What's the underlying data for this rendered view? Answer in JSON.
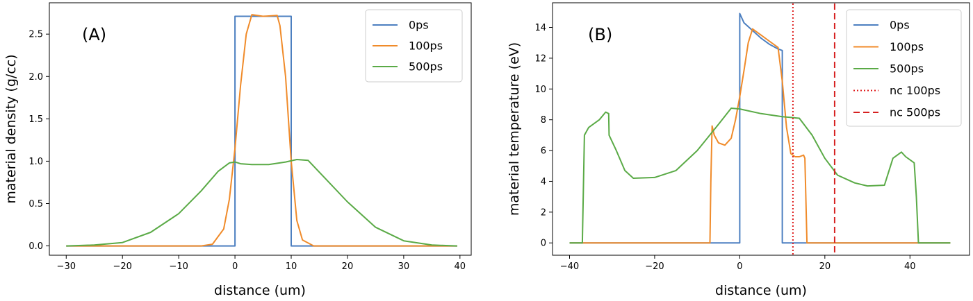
{
  "chart_data": [
    {
      "type": "line",
      "panel_label": "(A)",
      "xlabel": "distance (um)",
      "ylabel": "material density (g/cc)",
      "xlim": [
        -33,
        42
      ],
      "ylim": [
        -0.11,
        2.87
      ],
      "xticks": [
        -30,
        -20,
        -10,
        0,
        10,
        20,
        30,
        40
      ],
      "yticks": [
        0.0,
        0.5,
        1.0,
        1.5,
        2.0,
        2.5
      ],
      "ytick_labels": [
        "0.0",
        "0.5",
        "1.0",
        "1.5",
        "2.0",
        "2.5"
      ],
      "grid": false,
      "legend_position": "top-right",
      "series": [
        {
          "name": "0ps",
          "color": "#4c7fc0",
          "style": "solid",
          "points": [
            [
              -30,
              0
            ],
            [
              0,
              0
            ],
            [
              0,
              2.71
            ],
            [
              10,
              2.71
            ],
            [
              10,
              0
            ],
            [
              39.5,
              0
            ]
          ]
        },
        {
          "name": "100ps",
          "color": "#f08b2a",
          "style": "solid",
          "points": [
            [
              -30,
              0
            ],
            [
              -6,
              0
            ],
            [
              -4,
              0.02
            ],
            [
              -2,
              0.2
            ],
            [
              -1,
              0.55
            ],
            [
              0,
              1.15
            ],
            [
              1,
              1.9
            ],
            [
              2,
              2.5
            ],
            [
              3,
              2.73
            ],
            [
              5,
              2.71
            ],
            [
              7.5,
              2.72
            ],
            [
              8,
              2.6
            ],
            [
              9,
              2.0
            ],
            [
              10,
              1.0
            ],
            [
              11,
              0.3
            ],
            [
              12,
              0.07
            ],
            [
              14,
              0.0
            ],
            [
              39.5,
              0
            ]
          ]
        },
        {
          "name": "500ps",
          "color": "#5aaa46",
          "style": "solid",
          "points": [
            [
              -30,
              0
            ],
            [
              -25,
              0.01
            ],
            [
              -20,
              0.04
            ],
            [
              -15,
              0.16
            ],
            [
              -10,
              0.38
            ],
            [
              -6,
              0.65
            ],
            [
              -3,
              0.88
            ],
            [
              -1,
              0.98
            ],
            [
              0,
              0.99
            ],
            [
              1,
              0.97
            ],
            [
              3,
              0.96
            ],
            [
              6,
              0.96
            ],
            [
              9,
              0.99
            ],
            [
              11,
              1.02
            ],
            [
              13,
              1.01
            ],
            [
              15,
              0.87
            ],
            [
              20,
              0.52
            ],
            [
              25,
              0.22
            ],
            [
              30,
              0.06
            ],
            [
              35,
              0.01
            ],
            [
              39.5,
              0.0
            ]
          ]
        }
      ]
    },
    {
      "type": "line",
      "panel_label": "(B)",
      "xlabel": "distance (um)",
      "ylabel": "material temperature (eV)",
      "xlim": [
        -44,
        54
      ],
      "ylim": [
        -0.8,
        15.6
      ],
      "xticks": [
        -40,
        -20,
        0,
        20,
        40
      ],
      "yticks": [
        0,
        2,
        4,
        6,
        8,
        10,
        12,
        14
      ],
      "ytick_labels": [
        "0",
        "2",
        "4",
        "6",
        "8",
        "10",
        "12",
        "14"
      ],
      "grid": false,
      "legend_position": "top-right",
      "series": [
        {
          "name": "0ps",
          "color": "#4c7fc0",
          "style": "solid",
          "points": [
            [
              -40,
              0
            ],
            [
              0,
              0
            ],
            [
              0,
              14.9
            ],
            [
              1,
              14.3
            ],
            [
              3,
              13.8
            ],
            [
              5,
              13.3
            ],
            [
              7,
              12.9
            ],
            [
              9,
              12.6
            ],
            [
              10,
              12.5
            ],
            [
              10,
              0
            ],
            [
              49.5,
              0
            ]
          ]
        },
        {
          "name": "100ps",
          "color": "#f08b2a",
          "style": "solid",
          "points": [
            [
              -40,
              0
            ],
            [
              -7,
              0
            ],
            [
              -6.8,
              4.0
            ],
            [
              -6.5,
              7.6
            ],
            [
              -6,
              7.0
            ],
            [
              -5,
              6.5
            ],
            [
              -3.5,
              6.35
            ],
            [
              -2,
              6.8
            ],
            [
              -1,
              8.0
            ],
            [
              0,
              9.5
            ],
            [
              1,
              11.2
            ],
            [
              2,
              13.0
            ],
            [
              3,
              13.9
            ],
            [
              5,
              13.5
            ],
            [
              7,
              13.1
            ],
            [
              9,
              12.7
            ],
            [
              10,
              10.5
            ],
            [
              11,
              7.5
            ],
            [
              12,
              5.8
            ],
            [
              13,
              5.6
            ],
            [
              14,
              5.6
            ],
            [
              15,
              5.7
            ],
            [
              15.3,
              5.5
            ],
            [
              15.8,
              0
            ],
            [
              49.5,
              0
            ]
          ]
        },
        {
          "name": "500ps",
          "color": "#5aaa46",
          "style": "solid",
          "points": [
            [
              -40,
              0
            ],
            [
              -37,
              0
            ],
            [
              -36.5,
              7.0
            ],
            [
              -35.5,
              7.5
            ],
            [
              -33,
              8.0
            ],
            [
              -31.5,
              8.5
            ],
            [
              -30.8,
              8.4
            ],
            [
              -30.7,
              7.0
            ],
            [
              -29,
              6.0
            ],
            [
              -27,
              4.7
            ],
            [
              -25,
              4.2
            ],
            [
              -20,
              4.25
            ],
            [
              -15,
              4.7
            ],
            [
              -10,
              6.0
            ],
            [
              -5,
              7.7
            ],
            [
              -2,
              8.75
            ],
            [
              0,
              8.7
            ],
            [
              5,
              8.4
            ],
            [
              10,
              8.2
            ],
            [
              14,
              8.1
            ],
            [
              17,
              7.0
            ],
            [
              20,
              5.5
            ],
            [
              23,
              4.4
            ],
            [
              27,
              3.9
            ],
            [
              30,
              3.7
            ],
            [
              34,
              3.75
            ],
            [
              36,
              5.5
            ],
            [
              38,
              5.9
            ],
            [
              39,
              5.6
            ],
            [
              41,
              5.2
            ],
            [
              41.5,
              3.0
            ],
            [
              42,
              0
            ],
            [
              49.5,
              0
            ]
          ]
        },
        {
          "name": "nc 100ps",
          "color": "#e02020",
          "style": "dotted",
          "vline_x": 12.5
        },
        {
          "name": "nc 500ps",
          "color": "#d62020",
          "style": "dashed",
          "vline_x": 22.3
        }
      ]
    }
  ]
}
